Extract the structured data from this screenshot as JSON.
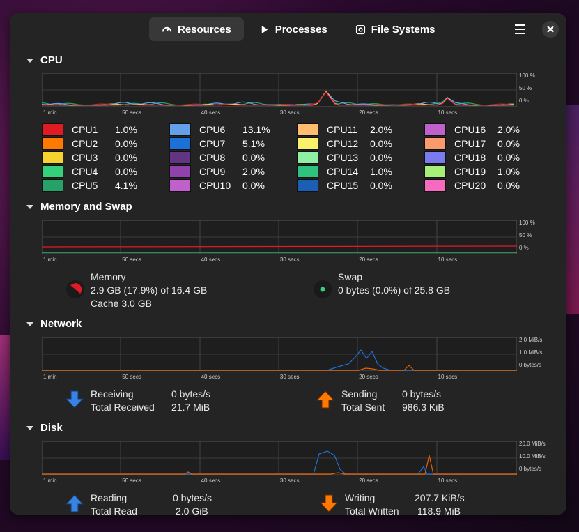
{
  "tabs": [
    {
      "label": "Resources",
      "icon": "gauge-icon",
      "active": true
    },
    {
      "label": "Processes",
      "icon": "play-icon",
      "active": false
    },
    {
      "label": "File Systems",
      "icon": "disk-icon",
      "active": false
    }
  ],
  "time_ticks": [
    "1 min",
    "50 secs",
    "40 secs",
    "30 secs",
    "20 secs",
    "10 secs"
  ],
  "cpu": {
    "title": "CPU",
    "y_ticks": [
      "100 %",
      "50 %",
      "0 %"
    ],
    "cores": [
      {
        "name": "CPU1",
        "value": "1.0%",
        "color": "#e01b24"
      },
      {
        "name": "CPU2",
        "value": "0.0%",
        "color": "#ff7800"
      },
      {
        "name": "CPU3",
        "value": "0.0%",
        "color": "#f6d32d"
      },
      {
        "name": "CPU4",
        "value": "0.0%",
        "color": "#33d17a"
      },
      {
        "name": "CPU5",
        "value": "4.1%",
        "color": "#26a269"
      },
      {
        "name": "CPU6",
        "value": "13.1%",
        "color": "#62a0ea"
      },
      {
        "name": "CPU7",
        "value": "5.1%",
        "color": "#1c71d8"
      },
      {
        "name": "CPU8",
        "value": "0.0%",
        "color": "#613583"
      },
      {
        "name": "CPU9",
        "value": "2.0%",
        "color": "#9141ac"
      },
      {
        "name": "CPU10",
        "value": "0.0%",
        "color": "#c061cb"
      },
      {
        "name": "CPU11",
        "value": "2.0%",
        "color": "#ffbe6f"
      },
      {
        "name": "CPU12",
        "value": "0.0%",
        "color": "#f9f06b"
      },
      {
        "name": "CPU13",
        "value": "0.0%",
        "color": "#8ff0a4"
      },
      {
        "name": "CPU14",
        "value": "1.0%",
        "color": "#2ec27e"
      },
      {
        "name": "CPU15",
        "value": "0.0%",
        "color": "#1a5fb4"
      },
      {
        "name": "CPU16",
        "value": "2.0%",
        "color": "#c061cb"
      },
      {
        "name": "CPU17",
        "value": "0.0%",
        "color": "#f99b6d"
      },
      {
        "name": "CPU18",
        "value": "0.0%",
        "color": "#7b7bf0"
      },
      {
        "name": "CPU19",
        "value": "1.0%",
        "color": "#a6f07a"
      },
      {
        "name": "CPU20",
        "value": "0.0%",
        "color": "#f66bbf"
      }
    ]
  },
  "memory": {
    "title": "Memory and Swap",
    "y_ticks": [
      "100 %",
      "50 %",
      "0 %"
    ],
    "memory_label": "Memory",
    "memory_value": "2.9 GB (17.9%) of 16.4 GB",
    "cache_value": "Cache 3.0 GB",
    "memory_color": "#e01b24",
    "swap_label": "Swap",
    "swap_value": "0 bytes (0.0%) of 25.8 GB",
    "swap_color": "#33d17a"
  },
  "network": {
    "title": "Network",
    "y_ticks": [
      "2.0 MiB/s",
      "1.0 MiB/s",
      "0 bytes/s"
    ],
    "receiving_label": "Receiving",
    "receiving_value": "0 bytes/s",
    "total_received_label": "Total Received",
    "total_received_value": "21.7 MiB",
    "sending_label": "Sending",
    "sending_value": "0 bytes/s",
    "total_sent_label": "Total Sent",
    "total_sent_value": "986.3 KiB",
    "receive_color": "#1c71d8",
    "send_color": "#e66100"
  },
  "disk": {
    "title": "Disk",
    "y_ticks": [
      "20.0 MiB/s",
      "10.0 MiB/s",
      "0 bytes/s"
    ],
    "reading_label": "Reading",
    "reading_value": "0 bytes/s",
    "total_read_label": "Total Read",
    "total_read_value": "2.0 GiB",
    "writing_label": "Writing",
    "writing_value": "207.7 KiB/s",
    "total_written_label": "Total Written",
    "total_written_value": "118.9 MiB",
    "read_color": "#1c71d8",
    "write_color": "#e66100"
  }
}
